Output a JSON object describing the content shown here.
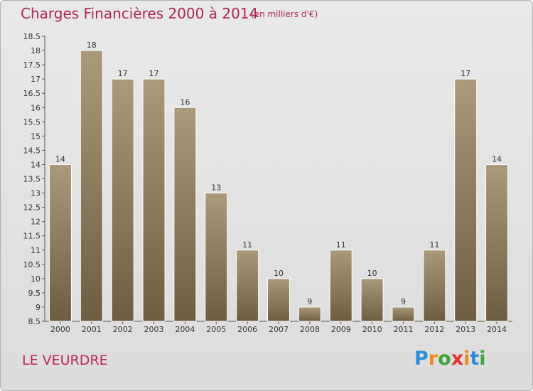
{
  "header": {
    "title": "Charges Financières 2000 à 2014",
    "subtitle": "(en milliers d'€)"
  },
  "footer": {
    "commune": "LE VEURDRE",
    "logo": {
      "text": "Proxiti",
      "colors": [
        "#2a8fd8",
        "#f08a1c",
        "#3aa83a",
        "#e5332a",
        "#f08a1c",
        "#2a8fd8",
        "#3aa83a"
      ]
    }
  },
  "chart_data": {
    "type": "bar",
    "title": "Charges Financières 2000 à 2014",
    "subtitle": "(en milliers d'€)",
    "categories": [
      "2000",
      "2001",
      "2002",
      "2003",
      "2004",
      "2005",
      "2006",
      "2007",
      "2008",
      "2009",
      "2010",
      "2011",
      "2012",
      "2013",
      "2014"
    ],
    "values": [
      14,
      18,
      17,
      17,
      16,
      13,
      11,
      10,
      9,
      11,
      10,
      9,
      11,
      17,
      14
    ],
    "ylim": [
      8.5,
      18.5
    ],
    "yticks": [
      "8.5",
      "9",
      "9.5",
      "10",
      "10.5",
      "11",
      "11.5",
      "12",
      "12.5",
      "13",
      "13.5",
      "14",
      "14.5",
      "15",
      "15.5",
      "16",
      "16.5",
      "17",
      "17.5",
      "18",
      "18.5"
    ],
    "grid": false,
    "bar_color_top": "#ab9a78",
    "bar_color_bottom": "#6e5d40"
  }
}
